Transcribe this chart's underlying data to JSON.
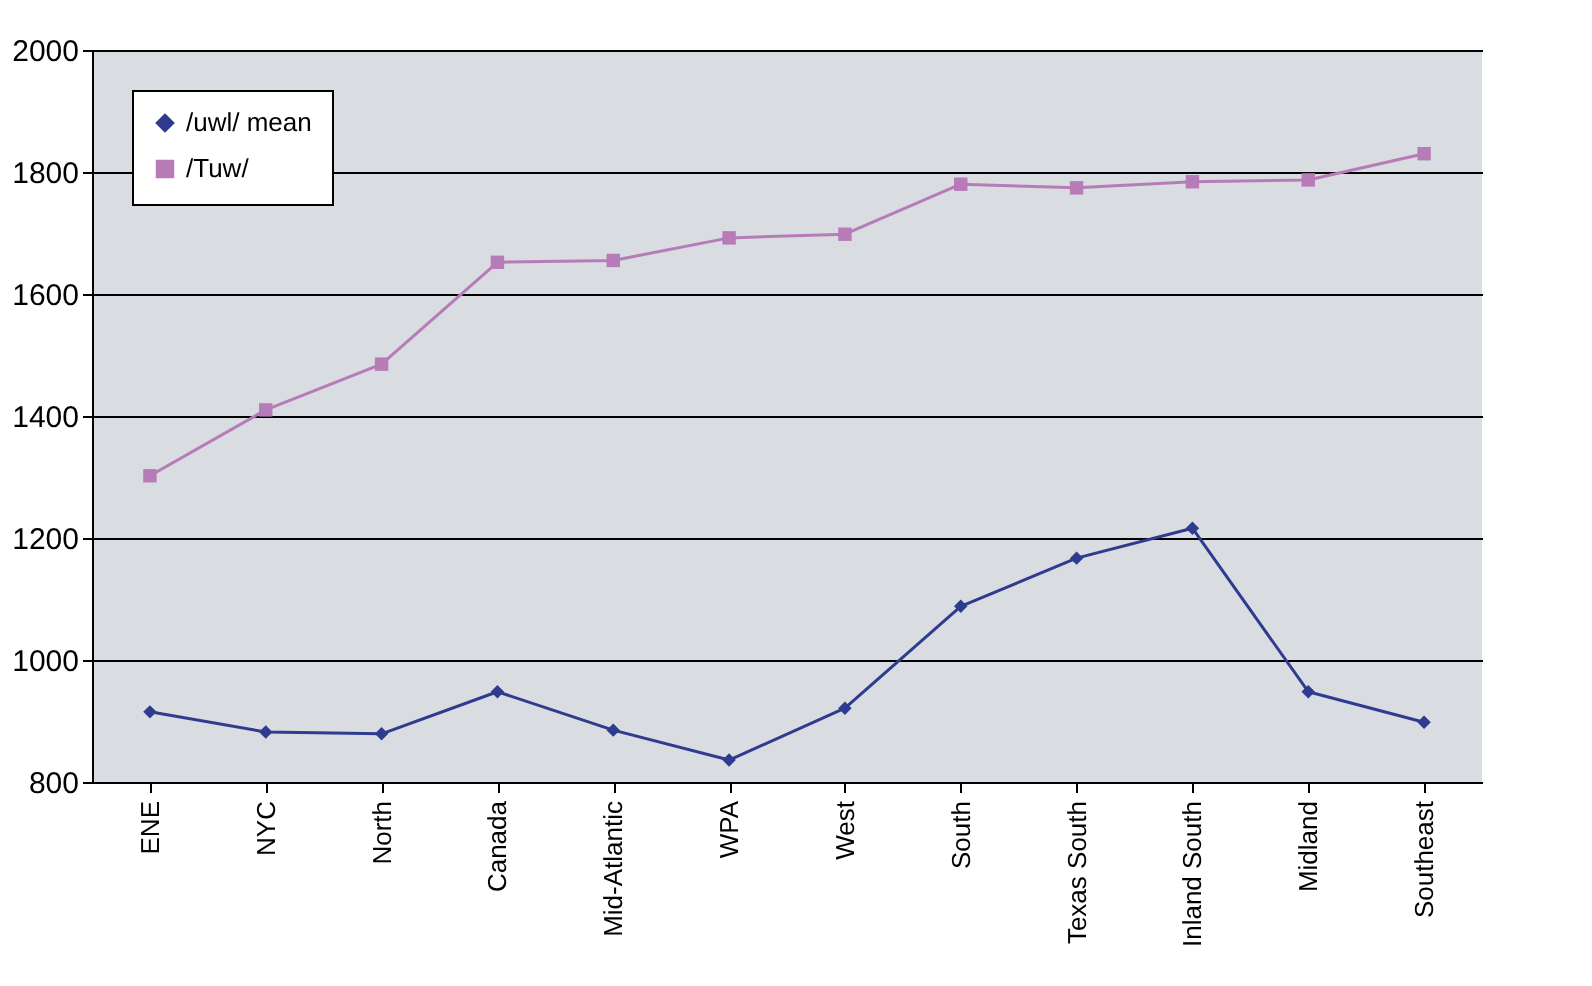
{
  "chart_data": {
    "type": "line",
    "categories": [
      "ENE",
      "NYC",
      "North",
      "Canada",
      "Mid-Atlantic",
      "WPA",
      "West",
      "South",
      "Texas South",
      "Inland South",
      "Midland",
      "Southeast"
    ],
    "series": [
      {
        "name": "/uwl/ mean",
        "color": "#2e3b8f",
        "marker": "diamond",
        "values": [
          915,
          882,
          879,
          948,
          885,
          836,
          921,
          1088,
          1167,
          1216,
          948,
          898
        ]
      },
      {
        "name": "/Tuw/",
        "color": "#b77bb8",
        "marker": "square",
        "values": [
          1302,
          1410,
          1485,
          1652,
          1655,
          1692,
          1698,
          1780,
          1774,
          1784,
          1787,
          1830
        ]
      }
    ],
    "ylim": [
      800,
      2000
    ],
    "yticks": [
      800,
      1000,
      1200,
      1400,
      1600,
      1800,
      2000
    ],
    "grid": "y",
    "legend": "top left",
    "line_style": "solid"
  }
}
